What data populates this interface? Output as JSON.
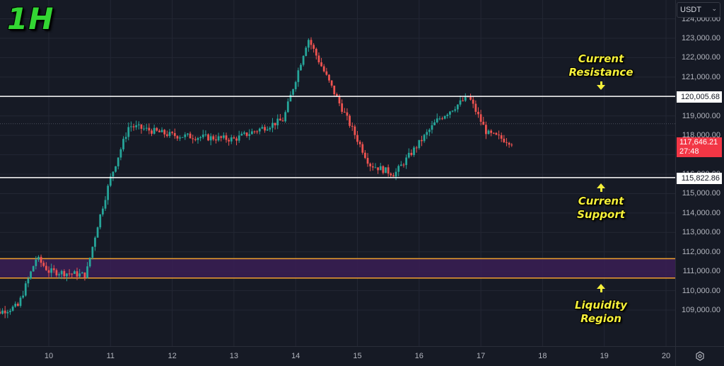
{
  "timeframe_label": "1H",
  "currency_selector": {
    "value": "USDT",
    "chevron": "chevron-down-icon"
  },
  "price_axis": {
    "ticks": [
      {
        "label": "124,000.00",
        "price": 124000
      },
      {
        "label": "123,000.00",
        "price": 123000
      },
      {
        "label": "122,000.00",
        "price": 122000
      },
      {
        "label": "121,000.00",
        "price": 121000
      },
      {
        "label": "119,000.00",
        "price": 119000
      },
      {
        "label": "118,000.00",
        "price": 118000
      },
      {
        "label": "116,000.00",
        "price": 116000
      },
      {
        "label": "115,000.00",
        "price": 115000
      },
      {
        "label": "114,000.00",
        "price": 114000
      },
      {
        "label": "113,000.00",
        "price": 113000
      },
      {
        "label": "112,000.00",
        "price": 112000
      },
      {
        "label": "111,000.00",
        "price": 111000
      },
      {
        "label": "110,000.00",
        "price": 110000
      },
      {
        "label": "109,000.00",
        "price": 109000
      }
    ],
    "resistance_tag": "120,005.68",
    "support_tag": "115,822.86",
    "last_price_tag": "117,646.21",
    "countdown": "27:48"
  },
  "time_axis": {
    "ticks": [
      "10",
      "11",
      "12",
      "13",
      "14",
      "15",
      "16",
      "17",
      "18",
      "19",
      "20"
    ],
    "settings_icon": "settings-icon"
  },
  "annotations": {
    "resistance": {
      "line1": "Current",
      "line2": "Resistance"
    },
    "support": {
      "line1": "Current",
      "line2": "Support"
    },
    "liquidity": {
      "line1": "Liquidity",
      "line2": "Region"
    }
  },
  "colors": {
    "background": "#161a25",
    "grid": "#232734",
    "up": "#26a69a",
    "down": "#ef5350",
    "level_line": "#ffffff",
    "zone_fill": "#3a1f55",
    "zone_border": "#f0a030",
    "label_text": "#f5f03a",
    "timeframe_text": "#33d633",
    "last_price_bg": "#f23645"
  },
  "chart_data": {
    "type": "candlestick",
    "title": "1H",
    "symbol_quote": "USDT",
    "xlabel": "",
    "ylabel": "",
    "ylim": [
      107800,
      124100
    ],
    "x_ticks": [
      "10",
      "11",
      "12",
      "13",
      "14",
      "15",
      "16",
      "17",
      "18",
      "19",
      "20"
    ],
    "y_ticks": [
      109000,
      110000,
      111000,
      112000,
      113000,
      114000,
      115000,
      116000,
      118000,
      119000,
      121000,
      122000,
      123000,
      124000
    ],
    "horizontal_levels": [
      {
        "name": "Current Resistance",
        "price": 120005.68
      },
      {
        "name": "Current Support",
        "price": 115822.86
      }
    ],
    "zones": [
      {
        "name": "Liquidity Region",
        "low": 110650,
        "high": 111650
      }
    ],
    "last_price": 117646.21,
    "countdown": "27:48",
    "approx_path": [
      {
        "t": "09.0",
        "p": 108700
      },
      {
        "t": "09.5",
        "p": 109200
      },
      {
        "t": "09.8",
        "p": 111700
      },
      {
        "t": "10.0",
        "p": 111000
      },
      {
        "t": "10.6",
        "p": 110800
      },
      {
        "t": "10.8",
        "p": 113500
      },
      {
        "t": "11.0",
        "p": 115800
      },
      {
        "t": "11.3",
        "p": 118500
      },
      {
        "t": "12.0",
        "p": 118000
      },
      {
        "t": "13.0",
        "p": 117800
      },
      {
        "t": "13.8",
        "p": 118800
      },
      {
        "t": "14.2",
        "p": 123000
      },
      {
        "t": "14.7",
        "p": 119700
      },
      {
        "t": "15.2",
        "p": 116500
      },
      {
        "t": "15.6",
        "p": 116000
      },
      {
        "t": "16.3",
        "p": 118800
      },
      {
        "t": "16.8",
        "p": 120000
      },
      {
        "t": "17.1",
        "p": 118100
      },
      {
        "t": "17.5",
        "p": 117646
      }
    ],
    "grid": true,
    "legend": "none"
  }
}
